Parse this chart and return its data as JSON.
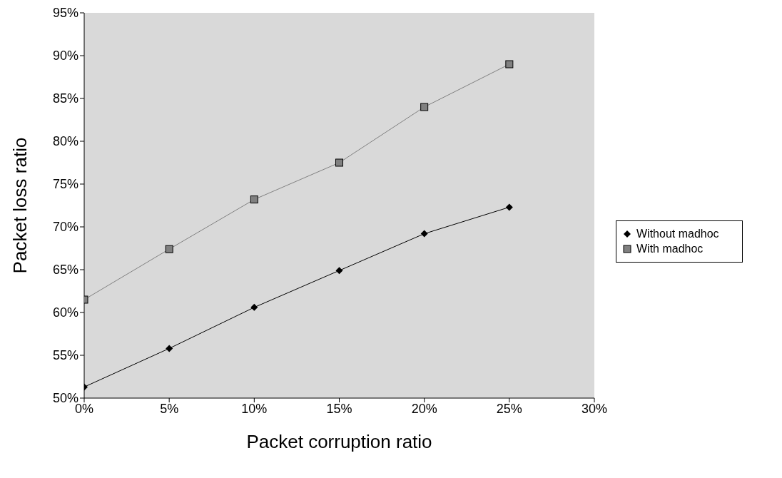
{
  "chart_data": {
    "type": "line",
    "xlabel": "Packet corruption ratio",
    "ylabel": "Packet loss ratio",
    "x": [
      0,
      5,
      10,
      15,
      20,
      25
    ],
    "xlim": [
      0,
      30
    ],
    "xticks": [
      {
        "value": 0,
        "label": "0%"
      },
      {
        "value": 5,
        "label": "5%"
      },
      {
        "value": 10,
        "label": "10%"
      },
      {
        "value": 15,
        "label": "15%"
      },
      {
        "value": 20,
        "label": "20%"
      },
      {
        "value": 25,
        "label": "25%"
      },
      {
        "value": 30,
        "label": "30%"
      }
    ],
    "ylim": [
      50,
      95
    ],
    "yticks": [
      {
        "value": 50,
        "label": "50%"
      },
      {
        "value": 55,
        "label": "55%"
      },
      {
        "value": 60,
        "label": "60%"
      },
      {
        "value": 65,
        "label": "65%"
      },
      {
        "value": 70,
        "label": "70%"
      },
      {
        "value": 75,
        "label": "75%"
      },
      {
        "value": 80,
        "label": "80%"
      },
      {
        "value": 85,
        "label": "85%"
      },
      {
        "value": 90,
        "label": "90%"
      },
      {
        "value": 95,
        "label": "95%"
      }
    ],
    "grid": false,
    "legend": "right",
    "line_style": "solid",
    "series": [
      {
        "name": "Without madhoc",
        "color": "#000000",
        "marker": "diamond",
        "values": [
          51.3,
          55.8,
          60.6,
          64.9,
          69.2,
          72.3
        ]
      },
      {
        "name": "With madhoc",
        "color": "#808080",
        "marker": "square",
        "values": [
          61.5,
          67.4,
          73.2,
          77.5,
          84.0,
          89.0
        ]
      }
    ]
  }
}
